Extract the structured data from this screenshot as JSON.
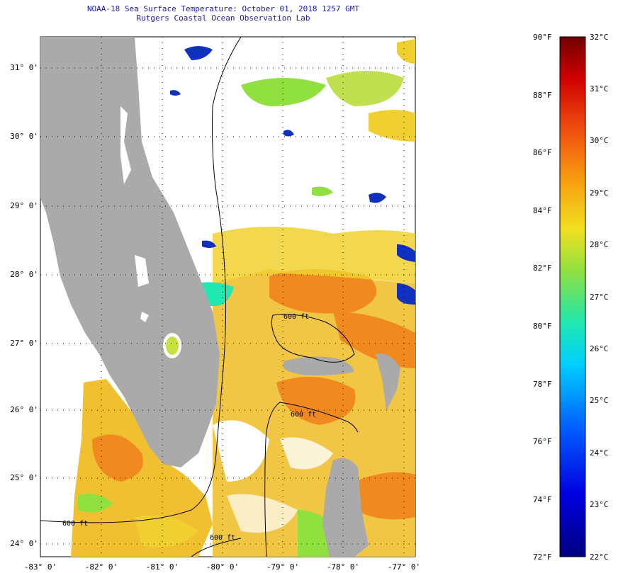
{
  "title_line1": "NOAA-18 Sea Surface Temperature:  October 01, 2018 1257 GMT",
  "title_line2": "Rutgers Coastal Ocean Observation Lab",
  "lat_ticks": [
    "31° 0'",
    "30° 0'",
    "29° 0'",
    "28° 0'",
    "27° 0'",
    "26° 0'",
    "25° 0'",
    "24° 0'"
  ],
  "lon_ticks": [
    "-83° 0'",
    "-82° 0'",
    "-81° 0'",
    "-80° 0'",
    "-79° 0'",
    "-78° 0'",
    "-77° 0'"
  ],
  "contour_label": "600 ft",
  "colorbar_f": [
    "90°F",
    "88°F",
    "86°F",
    "84°F",
    "82°F",
    "80°F",
    "78°F",
    "76°F",
    "74°F",
    "72°F"
  ],
  "colorbar_c": [
    "32°C",
    "31°C",
    "30°C",
    "29°C",
    "28°C",
    "27°C",
    "26°C",
    "25°C",
    "24°C",
    "23°C",
    "22°C"
  ],
  "colors": {
    "land": "#aaaaaa",
    "warm": "#f08a20",
    "mid": "#f0d030",
    "cool": "#90e040",
    "cold": "#1030c0"
  }
}
